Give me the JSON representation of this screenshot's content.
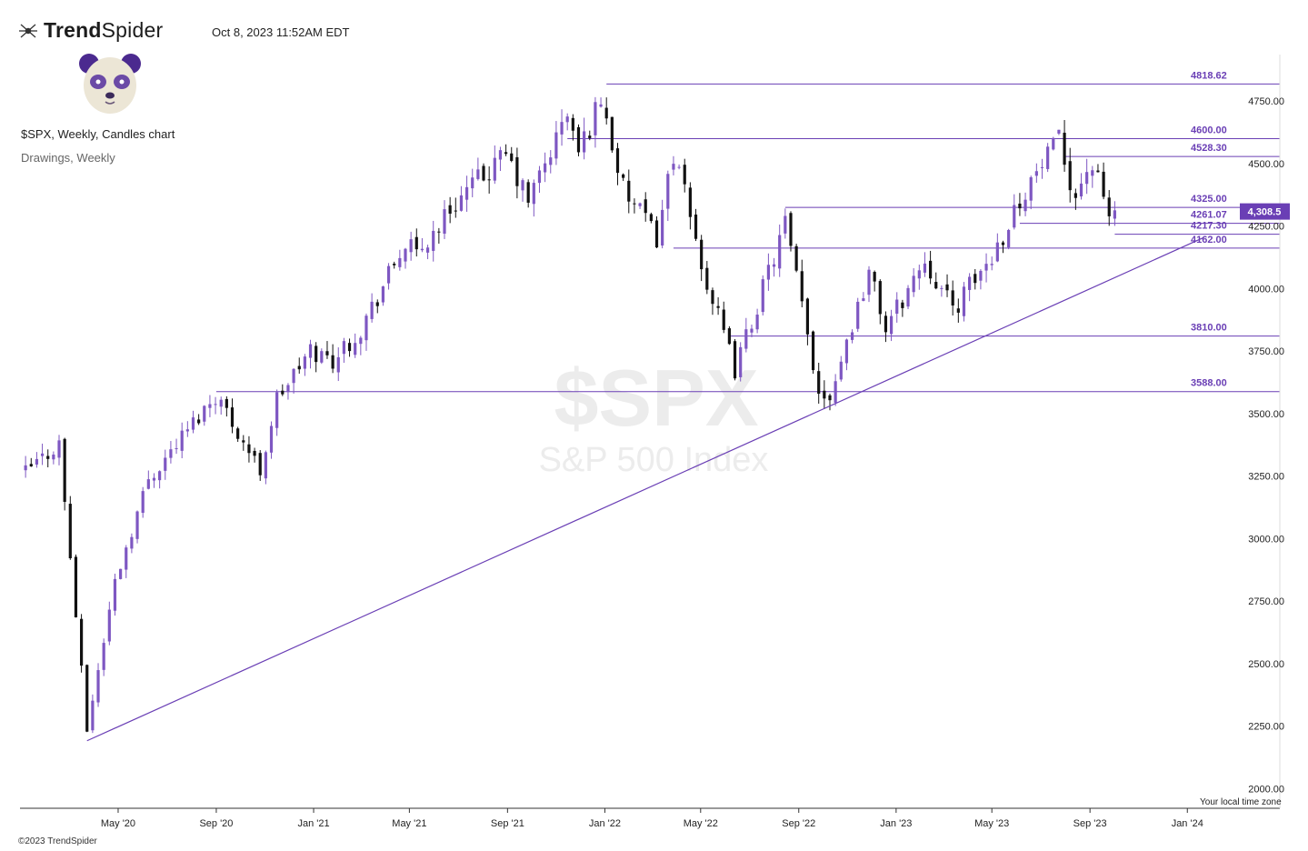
{
  "header": {
    "brand_bold": "Trend",
    "brand_regular": "Spider",
    "timestamp": "Oct 8, 2023 11:52AM EDT",
    "chart_title": "$SPX, Weekly, Candles chart",
    "drawings_label": "Drawings, Weekly"
  },
  "footer": {
    "copyright": "©2023 TrendSpider",
    "timezone_note": "Your local time zone"
  },
  "watermark": {
    "symbol": "$SPX",
    "name": "S&P 500 Index"
  },
  "colors": {
    "accent": "#6a3fb5",
    "up_candle": "#7e57c2",
    "down_candle": "#111111",
    "axis": "#333333",
    "price_tag_bg": "#6a3fb5",
    "watermark": "#e9e9e9"
  },
  "chart_data": {
    "type": "candlestick",
    "interval": "Weekly",
    "symbol": "$SPX",
    "ylim": [
      1950,
      4900
    ],
    "y_ticks": [
      "2000.00",
      "2250.00",
      "2500.00",
      "2750.00",
      "3000.00",
      "3250.00",
      "3500.00",
      "3750.00",
      "4000.00",
      "4250.00",
      "4500.00",
      "4750.00"
    ],
    "x_ticks": [
      "May '20",
      "Sep '20",
      "Jan '21",
      "May '21",
      "Sep '21",
      "Jan '22",
      "May '22",
      "Sep '22",
      "Jan '23",
      "May '23",
      "Sep '23",
      "Jan '24"
    ],
    "x_range": [
      "2019-12-30",
      "2024-03-25"
    ],
    "last_price": "4,308.5",
    "horizontal_levels": [
      {
        "label": "4818.62",
        "value": 4818.62,
        "from": "2022-01-03"
      },
      {
        "label": "4600.00",
        "value": 4600.0,
        "from": "2021-11-15"
      },
      {
        "label": "4528.30",
        "value": 4528.3,
        "from": "2023-08-01"
      },
      {
        "label": "4325.00",
        "value": 4325.0,
        "from": "2022-08-15"
      },
      {
        "label": "4261.07",
        "value": 4261.07,
        "from": "2023-06-05"
      },
      {
        "label": "4217.30",
        "value": 4217.3,
        "from": "2023-10-02"
      },
      {
        "label": "4162.00",
        "value": 4162.0,
        "from": "2022-03-28"
      },
      {
        "label": "3810.00",
        "value": 3810.0,
        "from": "2022-06-06"
      },
      {
        "label": "3588.00",
        "value": 3588.0,
        "from": "2020-09-01"
      }
    ],
    "trendline": {
      "start": {
        "date": "2020-03-23",
        "value": 2191
      },
      "end": {
        "date": "2024-01-22",
        "value": 4205
      }
    },
    "anchors": [
      [
        "2020-01-06",
        3265
      ],
      [
        "2020-02-17",
        3380
      ],
      [
        "2020-03-23",
        2237
      ],
      [
        "2020-04-27",
        2830
      ],
      [
        "2020-06-08",
        3240
      ],
      [
        "2020-09-01",
        3580
      ],
      [
        "2020-10-26",
        3270
      ],
      [
        "2020-11-16",
        3560
      ],
      [
        "2020-12-28",
        3750
      ],
      [
        "2021-01-25",
        3715
      ],
      [
        "2021-03-01",
        3840
      ],
      [
        "2021-04-26",
        4180
      ],
      [
        "2021-05-10",
        4130
      ],
      [
        "2021-06-28",
        4350
      ],
      [
        "2021-08-30",
        4530
      ],
      [
        "2021-09-27",
        4350
      ],
      [
        "2021-11-15",
        4700
      ],
      [
        "2021-11-29",
        4540
      ],
      [
        "2021-12-27",
        4766
      ],
      [
        "2022-01-24",
        4395
      ],
      [
        "2022-03-07",
        4205
      ],
      [
        "2022-03-28",
        4545
      ],
      [
        "2022-05-09",
        4020
      ],
      [
        "2022-06-13",
        3675
      ],
      [
        "2022-08-15",
        4260
      ],
      [
        "2022-09-26",
        3590
      ],
      [
        "2022-10-10",
        3580
      ],
      [
        "2022-11-28",
        4070
      ],
      [
        "2022-12-19",
        3840
      ],
      [
        "2023-02-06",
        4120
      ],
      [
        "2023-03-13",
        3915
      ],
      [
        "2023-05-01",
        4130
      ],
      [
        "2023-06-12",
        4400
      ],
      [
        "2023-07-24",
        4585
      ],
      [
        "2023-08-14",
        4370
      ],
      [
        "2023-09-01",
        4515
      ],
      [
        "2023-09-25",
        4290
      ],
      [
        "2023-10-02",
        4308
      ]
    ]
  }
}
